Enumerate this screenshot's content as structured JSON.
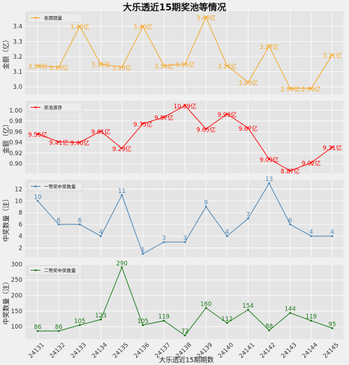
{
  "title": "大乐透近15期奖池等情况",
  "xlabel": "大乐透近15期期数",
  "chart_data": [
    {
      "type": "line",
      "legend": "各期销量",
      "ylabel": "金额（亿）",
      "color": "#f5a623",
      "categories": [
        "24131",
        "24132",
        "24133",
        "24134",
        "24135",
        "24136",
        "24137",
        "24138",
        "24139",
        "24140",
        "24141",
        "24142",
        "24143",
        "24144",
        "24145"
      ],
      "values": [
        3.14,
        3.13,
        3.4,
        3.15,
        3.13,
        3.4,
        3.14,
        3.15,
        3.46,
        3.14,
        3.03,
        3.27,
        2.99,
        2.99,
        3.21
      ],
      "labels": [
        "3.14亿",
        "3.13亿",
        "3.40亿",
        "3.15亿",
        "3.13亿",
        "3.40亿",
        "3.14亿",
        "3.15亿",
        "3.46亿",
        "3.14亿",
        "3.03亿",
        "3.27亿",
        "2.99亿",
        "2.99亿",
        "3.21亿"
      ],
      "yticks": [
        3.0,
        3.1,
        3.2,
        3.3,
        3.4
      ],
      "ytick_labels": [
        "3.0",
        "3.1",
        "3.2",
        "3.3",
        "3.4"
      ],
      "ylim": [
        2.95,
        3.5
      ],
      "grid": true,
      "legend_position": "top-left"
    },
    {
      "type": "line",
      "legend": "奖池滚存",
      "ylabel": "金额（亿）",
      "color": "#ff0000",
      "categories": [
        "24131",
        "24132",
        "24133",
        "24134",
        "24135",
        "24136",
        "24137",
        "24138",
        "24139",
        "24140",
        "24141",
        "24142",
        "24143",
        "24144",
        "24145"
      ],
      "values": [
        9.56,
        9.41,
        9.4,
        9.61,
        9.29,
        9.75,
        9.87,
        10.09,
        9.65,
        9.93,
        9.67,
        9.09,
        8.87,
        9.02,
        9.31
      ],
      "labels": [
        "9.56亿",
        "9.41亿",
        "9.40亿",
        "9.61亿",
        "9.29亿",
        "9.75亿",
        "9.87亿",
        "10.09亿",
        "9.65亿",
        "9.93亿",
        "9.67亿",
        "9.09亿",
        "8.87亿",
        "9.02亿",
        "9.31亿"
      ],
      "yticks": [
        0.9,
        0.92,
        0.94,
        0.96,
        0.98,
        1.0
      ],
      "ytick_labels": [
        "0.90",
        "0.92",
        "0.94",
        "0.96",
        "0.98",
        "1.00"
      ],
      "ylim": [
        0.882,
        1.018
      ],
      "grid": true,
      "legend_position": "top-left"
    },
    {
      "type": "line",
      "legend": "一等奖中奖数量",
      "ylabel": "中奖数量（注）",
      "color": "#4682b4",
      "categories": [
        "24131",
        "24132",
        "24133",
        "24134",
        "24135",
        "24136",
        "24137",
        "24138",
        "24139",
        "24140",
        "24141",
        "24142",
        "24143",
        "24144",
        "24145"
      ],
      "values": [
        10,
        6,
        6,
        4,
        11,
        1,
        3,
        3,
        9,
        4,
        7,
        13,
        6,
        4,
        4
      ],
      "yticks": [
        2,
        4,
        6,
        8,
        10,
        12
      ],
      "ylim": [
        0.4,
        13.6
      ],
      "grid": true,
      "legend_position": "top-left"
    },
    {
      "type": "line",
      "legend": "二等奖中奖数量",
      "ylabel": "中奖数量（注）",
      "color": "#1a7a1a",
      "categories": [
        "24131",
        "24132",
        "24133",
        "24134",
        "24135",
        "24136",
        "24137",
        "24138",
        "24139",
        "24140",
        "24141",
        "24142",
        "24143",
        "24144",
        "24145"
      ],
      "values": [
        86,
        86,
        105,
        123,
        290,
        105,
        119,
        72,
        160,
        112,
        154,
        88,
        144,
        119,
        95
      ],
      "yticks": [
        100,
        150,
        200,
        250,
        300
      ],
      "ylim": [
        60,
        302
      ],
      "grid": true,
      "legend_position": "top-left"
    }
  ]
}
